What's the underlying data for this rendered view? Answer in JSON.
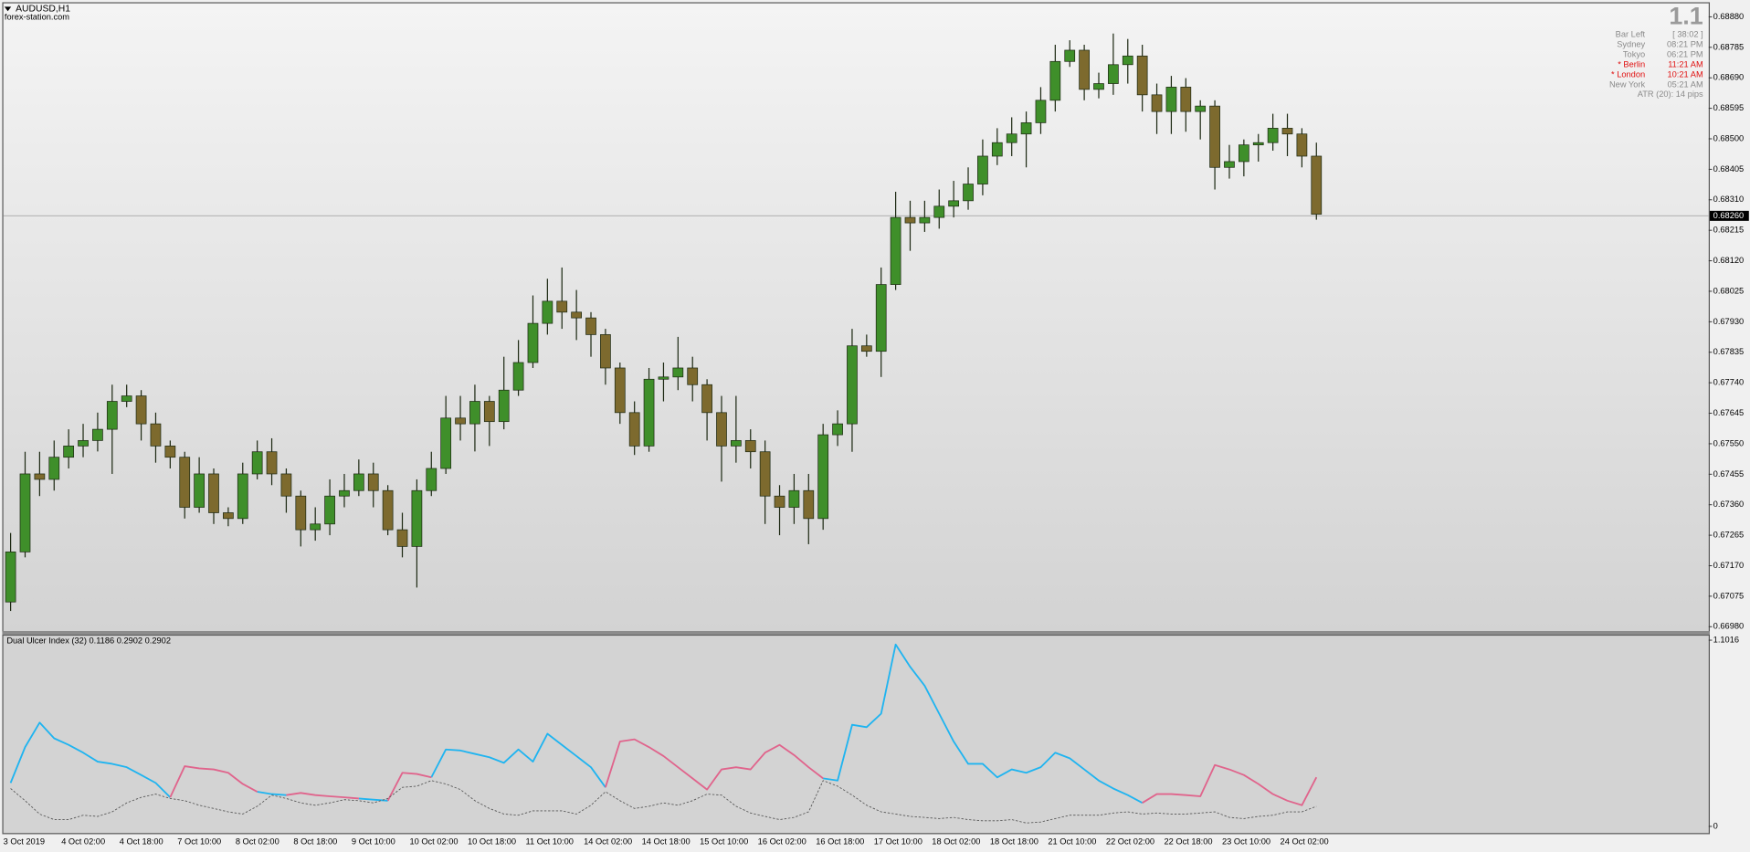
{
  "header": {
    "symbol": "AUDUSD,H1",
    "site": "forex-station.com"
  },
  "info_panel": {
    "version": "1.1",
    "rows": [
      [
        "Bar Left",
        "[ 38:02 ]"
      ],
      [
        "Sydney",
        "08:21 PM"
      ],
      [
        "Tokyo",
        "06:21 PM"
      ],
      [
        "* Berlin",
        "11:21 AM"
      ],
      [
        "* London",
        "10:21 AM"
      ],
      [
        "New York",
        "05:21 AM"
      ]
    ],
    "atr": "ATR (20): 14 pips"
  },
  "chart_data": [
    {
      "type": "candlestick",
      "categories": [
        "3 Oct 2019",
        null,
        null,
        null,
        "4 Oct 02:00",
        null,
        null,
        null,
        "4 Oct 18:00",
        null,
        null,
        null,
        "7 Oct 10:00",
        null,
        null,
        null,
        "8 Oct 02:00",
        null,
        null,
        null,
        "8 Oct 18:00",
        null,
        null,
        null,
        "9 Oct 10:00",
        null,
        null,
        null,
        "10 Oct 02:00",
        null,
        null,
        null,
        "10 Oct 18:00",
        null,
        null,
        null,
        "11 Oct 10:00",
        null,
        null,
        null,
        "14 Oct 02:00",
        null,
        null,
        null,
        "14 Oct 18:00",
        null,
        null,
        null,
        "15 Oct 10:00",
        null,
        null,
        null,
        "16 Oct 02:00",
        null,
        null,
        null,
        "16 Oct 18:00",
        null,
        null,
        null,
        "17 Oct 10:00",
        null,
        null,
        null,
        "18 Oct 02:00",
        null,
        null,
        null,
        "18 Oct 18:00",
        null,
        null,
        null,
        "21 Oct 10:00",
        null,
        null,
        null,
        "22 Oct 02:00",
        null,
        null,
        null,
        "22 Oct 18:00",
        null,
        null,
        null,
        "23 Oct 10:00",
        null,
        null,
        null,
        "24 Oct 02:00",
        null,
        null
      ],
      "open": [
        0.67057,
        0.67213,
        0.67456,
        0.67439,
        0.67508,
        0.67543,
        0.6756,
        0.67595,
        0.67682,
        0.67699,
        0.67612,
        0.67543,
        0.67508,
        0.67352,
        0.67456,
        0.67335,
        0.67317,
        0.67456,
        0.67525,
        0.67456,
        0.67387,
        0.67282,
        0.673,
        0.67387,
        0.67404,
        0.67456,
        0.67404,
        0.67282,
        0.6723,
        0.67404,
        0.67473,
        0.6763,
        0.67612,
        0.67682,
        0.67619,
        0.67717,
        0.67803,
        0.67925,
        0.67994,
        0.6796,
        0.67942,
        0.6789,
        0.67786,
        0.67647,
        0.67543,
        0.67751,
        0.67758,
        0.67786,
        0.67734,
        0.67647,
        0.67543,
        0.6756,
        0.67525,
        0.67387,
        0.67352,
        0.67404,
        0.67317,
        0.67578,
        0.67612,
        0.67855,
        0.67838,
        0.68046,
        0.68255,
        0.68238,
        0.68255,
        0.6829,
        0.68307,
        0.68359,
        0.68446,
        0.68488,
        0.68515,
        0.6855,
        0.6862,
        0.68741,
        0.68776,
        0.68654,
        0.68672,
        0.68731,
        0.68758,
        0.68637,
        0.68585,
        0.68661,
        0.68585,
        0.68602,
        0.68411,
        0.68429,
        0.68481,
        0.68488,
        0.68533,
        0.68515,
        0.68446
      ],
      "high": [
        0.67272,
        0.67525,
        0.67525,
        0.6756,
        0.67595,
        0.67612,
        0.67647,
        0.67734,
        0.67734,
        0.67717,
        0.67647,
        0.6756,
        0.67525,
        0.67508,
        0.67473,
        0.67352,
        0.67491,
        0.6756,
        0.67567,
        0.67473,
        0.67404,
        0.67352,
        0.67439,
        0.67456,
        0.67501,
        0.67491,
        0.67421,
        0.67335,
        0.67439,
        0.67525,
        0.67699,
        0.67699,
        0.67734,
        0.67699,
        0.67821,
        0.67873,
        0.68012,
        0.68064,
        0.68099,
        0.68029,
        0.6796,
        0.67908,
        0.67803,
        0.67682,
        0.67786,
        0.67803,
        0.67883,
        0.67821,
        0.67751,
        0.67699,
        0.67699,
        0.67595,
        0.6756,
        0.67421,
        0.67456,
        0.67456,
        0.67612,
        0.67654,
        0.67908,
        0.6789,
        0.68099,
        0.68335,
        0.68307,
        0.68307,
        0.68342,
        0.68369,
        0.68411,
        0.68498,
        0.68533,
        0.68567,
        0.68585,
        0.68661,
        0.68793,
        0.68807,
        0.68793,
        0.68706,
        0.68828,
        0.68811,
        0.68793,
        0.68672,
        0.68696,
        0.68689,
        0.6862,
        0.6862,
        0.68481,
        0.68498,
        0.68515,
        0.68578,
        0.68578,
        0.68533,
        0.68488
      ],
      "low": [
        0.67029,
        0.67196,
        0.67387,
        0.67404,
        0.67473,
        0.67508,
        0.67526,
        0.67456,
        0.67664,
        0.6756,
        0.67491,
        0.67473,
        0.67317,
        0.67335,
        0.673,
        0.67293,
        0.673,
        0.67439,
        0.67421,
        0.67335,
        0.6723,
        0.67248,
        0.67265,
        0.67352,
        0.67387,
        0.67352,
        0.67265,
        0.67196,
        0.67102,
        0.67387,
        0.67456,
        0.6756,
        0.67526,
        0.67543,
        0.67595,
        0.67699,
        0.67786,
        0.6789,
        0.67908,
        0.67873,
        0.67821,
        0.67734,
        0.67612,
        0.67515,
        0.67525,
        0.67682,
        0.67717,
        0.67682,
        0.6756,
        0.67432,
        0.67491,
        0.67473,
        0.673,
        0.67265,
        0.673,
        0.67237,
        0.67282,
        0.67543,
        0.67525,
        0.67821,
        0.67758,
        0.68029,
        0.68151,
        0.6821,
        0.6822,
        0.68255,
        0.68279,
        0.68324,
        0.68418,
        0.68446,
        0.68411,
        0.68515,
        0.68585,
        0.68724,
        0.6862,
        0.68626,
        0.68637,
        0.68672,
        0.68585,
        0.68515,
        0.68515,
        0.68522,
        0.68498,
        0.68342,
        0.68376,
        0.68383,
        0.68429,
        0.68463,
        0.68446,
        0.68411,
        0.68248
      ],
      "close": [
        0.67213,
        0.67456,
        0.67439,
        0.67508,
        0.67543,
        0.6756,
        0.67595,
        0.67682,
        0.67699,
        0.67612,
        0.67543,
        0.67508,
        0.67352,
        0.67456,
        0.67335,
        0.67317,
        0.67456,
        0.67525,
        0.67456,
        0.67387,
        0.67282,
        0.673,
        0.67387,
        0.67404,
        0.67456,
        0.67404,
        0.67282,
        0.6723,
        0.67404,
        0.67473,
        0.6763,
        0.67612,
        0.67682,
        0.67619,
        0.67717,
        0.67803,
        0.67925,
        0.67994,
        0.6796,
        0.67942,
        0.6789,
        0.67786,
        0.67647,
        0.67543,
        0.67751,
        0.67758,
        0.67786,
        0.67734,
        0.67647,
        0.67543,
        0.6756,
        0.67525,
        0.67387,
        0.67352,
        0.67404,
        0.67317,
        0.67578,
        0.67612,
        0.67855,
        0.67838,
        0.68046,
        0.68255,
        0.68238,
        0.68255,
        0.6829,
        0.68307,
        0.68359,
        0.68446,
        0.68488,
        0.68515,
        0.6855,
        0.6862,
        0.68741,
        0.68776,
        0.68654,
        0.68672,
        0.68731,
        0.68758,
        0.68637,
        0.68585,
        0.68661,
        0.68585,
        0.68602,
        0.68411,
        0.68429,
        0.68481,
        0.68488,
        0.68533,
        0.68515,
        0.68446,
        0.68265
      ],
      "up_color": "#3f8f2a",
      "down_color": "#7d6a2e",
      "wick_color": "#1e2a14",
      "ylim": [
        0.66966,
        0.68922
      ],
      "yticks": [
        {
          "value": 0.6888,
          "label": "0.68880"
        },
        0.68785,
        {
          "value": 0.6869,
          "label": "0.68690"
        },
        0.68595,
        {
          "value": 0.685,
          "label": "0.68500"
        },
        0.68405,
        {
          "value": 0.6831,
          "label": "0.68310"
        },
        0.68215,
        {
          "value": 0.6812,
          "label": "0.68120"
        },
        0.68025,
        {
          "value": 0.6793,
          "label": "0.67930"
        },
        0.67835,
        {
          "value": 0.6774,
          "label": "0.67740"
        },
        0.67645,
        {
          "value": 0.6755,
          "label": "0.67550"
        },
        0.67455,
        {
          "value": 0.6736,
          "label": "0.67360"
        },
        0.67265,
        {
          "value": 0.6717,
          "label": "0.67170"
        },
        0.67075,
        {
          "value": 0.6698,
          "label": "0.66980"
        }
      ],
      "current_price": {
        "value": 0.6826,
        "label": "0.68260"
      },
      "grid": false
    },
    {
      "type": "line",
      "title": "Dual Ulcer Index (32) 0.1186 0.2902 0.2902",
      "ylim": [
        -0.046,
        1.135
      ],
      "yticks": [
        1.1016,
        0
      ],
      "series": [
        {
          "color": "#1fb4f0",
          "dashed": false,
          "values": [
            0.257,
            0.469,
            0.614,
            0.521,
            0.482,
            0.436,
            0.383,
            0.37,
            0.35,
            0.304,
            0.257,
            0.172,
            null,
            null,
            null,
            null,
            null,
            0.205,
            0.191,
            0.185,
            null,
            null,
            null,
            null,
            0.165,
            0.158,
            0.152,
            null,
            null,
            0.29,
            0.455,
            0.449,
            0.429,
            0.409,
            0.376,
            0.455,
            0.383,
            0.548,
            0.482,
            0.416,
            0.35,
            0.231,
            null,
            null,
            null,
            null,
            null,
            null,
            null,
            null,
            null,
            null,
            null,
            null,
            null,
            null,
            0.284,
            0.271,
            0.601,
            0.587,
            0.667,
            1.076,
            0.944,
            0.832,
            0.667,
            0.502,
            0.37,
            0.37,
            0.29,
            0.337,
            0.317,
            0.35,
            0.436,
            0.403,
            0.337,
            0.271,
            0.224,
            0.185,
            0.139,
            null,
            null,
            null,
            null,
            null,
            null,
            null,
            null,
            null,
            null,
            null,
            null
          ]
        },
        {
          "color": "#e0648c",
          "dashed": false,
          "values": [
            null,
            null,
            null,
            null,
            null,
            null,
            null,
            null,
            null,
            null,
            null,
            0.172,
            0.356,
            0.343,
            0.337,
            0.317,
            0.251,
            0.205,
            null,
            0.185,
            0.198,
            0.185,
            0.178,
            0.172,
            0.165,
            null,
            0.152,
            0.317,
            0.31,
            0.29,
            null,
            null,
            null,
            null,
            null,
            null,
            null,
            null,
            null,
            null,
            null,
            0.231,
            0.502,
            0.515,
            0.469,
            0.416,
            0.35,
            0.284,
            0.218,
            0.337,
            0.35,
            0.337,
            0.436,
            0.482,
            0.422,
            0.35,
            0.284,
            null,
            null,
            null,
            null,
            null,
            null,
            null,
            null,
            null,
            null,
            null,
            null,
            null,
            null,
            null,
            null,
            null,
            null,
            null,
            null,
            null,
            0.139,
            0.191,
            0.191,
            0.185,
            0.178,
            0.363,
            0.337,
            0.304,
            0.251,
            0.191,
            0.152,
            0.125,
            0.2902
          ]
        },
        {
          "color": "#555555",
          "dashed": true,
          "values": [
            0.224,
            0.152,
            0.073,
            0.04,
            0.04,
            0.066,
            0.059,
            0.086,
            0.139,
            0.172,
            0.191,
            0.165,
            0.152,
            0.125,
            0.106,
            0.086,
            0.073,
            0.119,
            0.185,
            0.165,
            0.139,
            0.125,
            0.139,
            0.158,
            0.152,
            0.139,
            0.165,
            0.231,
            0.238,
            0.271,
            0.251,
            0.218,
            0.152,
            0.106,
            0.073,
            0.066,
            0.092,
            0.092,
            0.092,
            0.073,
            0.125,
            0.205,
            0.152,
            0.106,
            0.119,
            0.139,
            0.125,
            0.152,
            0.191,
            0.185,
            0.119,
            0.079,
            0.059,
            0.04,
            0.053,
            0.086,
            0.271,
            0.238,
            0.185,
            0.125,
            0.086,
            0.073,
            0.059,
            0.053,
            0.046,
            0.053,
            0.04,
            0.033,
            0.033,
            0.04,
            0.02,
            0.026,
            0.046,
            0.066,
            0.066,
            0.066,
            0.079,
            0.086,
            0.073,
            0.079,
            0.073,
            0.073,
            0.079,
            0.086,
            0.053,
            0.046,
            0.059,
            0.066,
            0.086,
            0.086,
            0.1186
          ]
        }
      ]
    }
  ]
}
